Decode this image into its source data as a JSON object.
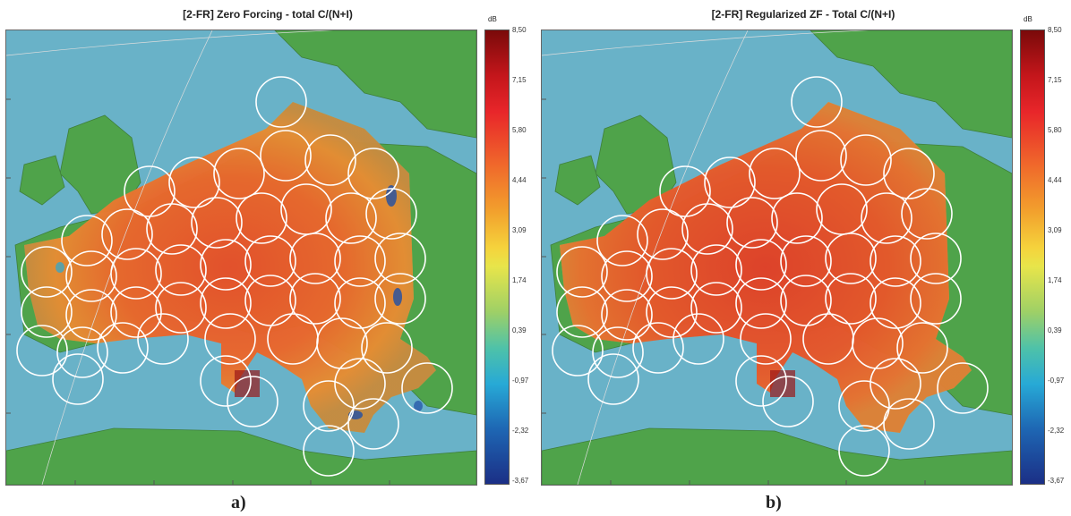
{
  "panels": [
    {
      "title": "[2-FR] Zero Forcing - total C/(N+I)",
      "sublabel": "a)",
      "colorbar": {
        "unit": "dB",
        "ticks": [
          "8,50",
          "7,15",
          "5,80",
          "4,44",
          "3,09",
          "1,74",
          "0,39",
          "-0,97",
          "-2,32",
          "-3,67"
        ]
      }
    },
    {
      "title": "[2-FR] Regularized ZF - Total C/(N+I)",
      "sublabel": "b)",
      "colorbar": {
        "unit": "dB",
        "ticks": [
          "8,50",
          "7,15",
          "5,80",
          "4,44",
          "3,09",
          "1,74",
          "0,39",
          "-0,97",
          "-2,32",
          "-3,67"
        ]
      }
    }
  ],
  "colors": {
    "sea": "#69b2c8",
    "land": "#4fa34a",
    "beam_outline": "#ffffff",
    "coverage_high": "#e0302a",
    "coverage_low": "#1e3f9a"
  }
}
